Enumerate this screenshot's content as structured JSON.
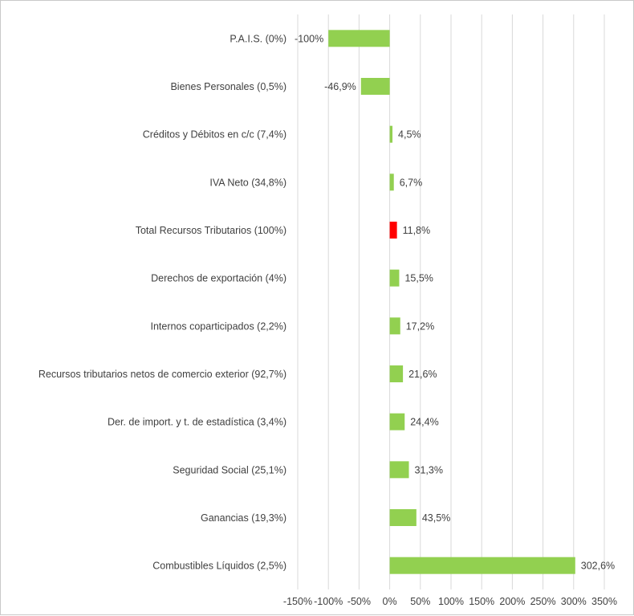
{
  "chart_data": {
    "type": "bar",
    "orientation": "horizontal",
    "title": "",
    "xlabel": "",
    "ylabel": "",
    "xlim": [
      -150,
      350
    ],
    "x_ticks": [
      "-150%",
      "-100%",
      "-50%",
      "0%",
      "50%",
      "100%",
      "150%",
      "200%",
      "250%",
      "300%",
      "350%"
    ],
    "categories": [
      "P.A.I.S. (0%)",
      "Bienes Personales (0,5%)",
      "Créditos y Débitos en c/c (7,4%)",
      "IVA Neto (34,8%)",
      "Total Recursos Tributarios (100%)",
      "Derechos de exportación (4%)",
      "Internos coparticipados (2,2%)",
      "Recursos tributarios netos de comercio exterior (92,7%)",
      "Der. de import. y t. de estadística (3,4%)",
      "Seguridad Social (25,1%)",
      "Ganancias (19,3%)",
      "Combustibles Líquidos (2,5%)"
    ],
    "values": [
      -100,
      -46.9,
      4.5,
      6.7,
      11.8,
      15.5,
      17.2,
      21.6,
      24.4,
      31.3,
      43.5,
      302.6
    ],
    "data_labels": [
      "-100%",
      "-46,9%",
      "4,5%",
      "6,7%",
      "11,8%",
      "15,5%",
      "17,2%",
      "21,6%",
      "24,4%",
      "31,3%",
      "43,5%",
      "302,6%"
    ],
    "bar_colors": [
      "#92d050",
      "#92d050",
      "#92d050",
      "#92d050",
      "#ff0000",
      "#92d050",
      "#92d050",
      "#92d050",
      "#92d050",
      "#92d050",
      "#92d050",
      "#92d050"
    ],
    "grid": true,
    "legend": "none"
  }
}
